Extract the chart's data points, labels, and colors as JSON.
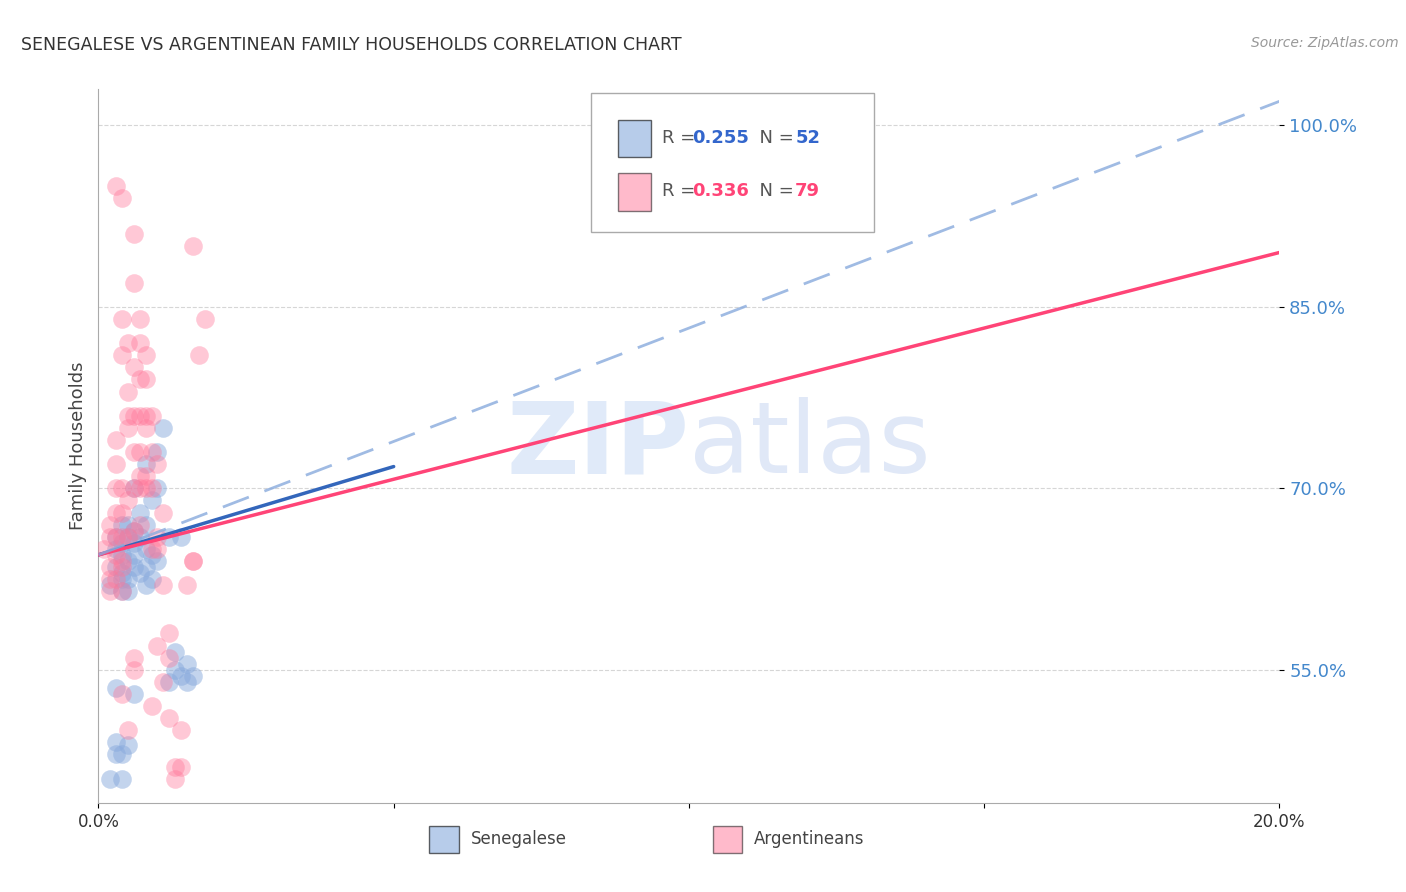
{
  "title": "SENEGALESE VS ARGENTINEAN FAMILY HOUSEHOLDS CORRELATION CHART",
  "source": "Source: ZipAtlas.com",
  "ylabel": "Family Households",
  "ytick_labels": [
    "55.0%",
    "70.0%",
    "85.0%",
    "100.0%"
  ],
  "ytick_values": [
    55.0,
    70.0,
    85.0,
    100.0
  ],
  "xlim": [
    0.0,
    20.0
  ],
  "ylim": [
    44.0,
    103.0
  ],
  "legend_blue_r": "0.255",
  "legend_blue_n": "52",
  "legend_pink_r": "0.336",
  "legend_pink_n": "79",
  "legend_label_blue": "Senegalese",
  "legend_label_pink": "Argentineans",
  "blue_color": "#88AADD",
  "pink_color": "#FF7799",
  "blue_scatter": [
    [
      0.2,
      62.0
    ],
    [
      0.3,
      63.5
    ],
    [
      0.3,
      65.0
    ],
    [
      0.3,
      66.0
    ],
    [
      0.4,
      63.0
    ],
    [
      0.4,
      64.5
    ],
    [
      0.4,
      65.5
    ],
    [
      0.4,
      62.5
    ],
    [
      0.4,
      61.5
    ],
    [
      0.5,
      64.0
    ],
    [
      0.5,
      66.0
    ],
    [
      0.5,
      67.0
    ],
    [
      0.5,
      62.5
    ],
    [
      0.5,
      61.5
    ],
    [
      0.6,
      63.5
    ],
    [
      0.6,
      64.5
    ],
    [
      0.6,
      65.5
    ],
    [
      0.6,
      66.5
    ],
    [
      0.6,
      70.0
    ],
    [
      0.7,
      63.0
    ],
    [
      0.7,
      66.0
    ],
    [
      0.7,
      68.0
    ],
    [
      0.8,
      62.0
    ],
    [
      0.8,
      63.5
    ],
    [
      0.8,
      65.0
    ],
    [
      0.8,
      67.0
    ],
    [
      0.8,
      72.0
    ],
    [
      0.9,
      62.5
    ],
    [
      0.9,
      64.5
    ],
    [
      0.9,
      69.0
    ],
    [
      1.0,
      70.0
    ],
    [
      1.0,
      64.0
    ],
    [
      1.0,
      73.0
    ],
    [
      1.1,
      75.0
    ],
    [
      1.2,
      66.0
    ],
    [
      1.2,
      54.0
    ],
    [
      1.3,
      55.0
    ],
    [
      1.3,
      56.5
    ],
    [
      1.4,
      66.0
    ],
    [
      1.4,
      54.5
    ],
    [
      1.5,
      55.5
    ],
    [
      1.5,
      54.0
    ],
    [
      1.6,
      54.5
    ],
    [
      0.3,
      48.0
    ],
    [
      0.3,
      49.0
    ],
    [
      0.4,
      48.0
    ],
    [
      0.5,
      48.8
    ],
    [
      0.6,
      53.0
    ],
    [
      0.2,
      46.0
    ],
    [
      0.4,
      46.0
    ],
    [
      0.3,
      53.5
    ],
    [
      0.4,
      67.0
    ]
  ],
  "pink_scatter": [
    [
      0.1,
      65.0
    ],
    [
      0.2,
      66.0
    ],
    [
      0.2,
      63.5
    ],
    [
      0.2,
      62.5
    ],
    [
      0.2,
      67.0
    ],
    [
      0.3,
      64.5
    ],
    [
      0.3,
      68.0
    ],
    [
      0.3,
      70.0
    ],
    [
      0.3,
      66.0
    ],
    [
      0.3,
      72.0
    ],
    [
      0.3,
      74.0
    ],
    [
      0.4,
      64.0
    ],
    [
      0.4,
      68.0
    ],
    [
      0.4,
      70.0
    ],
    [
      0.4,
      66.0
    ],
    [
      0.4,
      81.0
    ],
    [
      0.4,
      84.0
    ],
    [
      0.5,
      66.0
    ],
    [
      0.5,
      69.0
    ],
    [
      0.5,
      75.0
    ],
    [
      0.5,
      76.0
    ],
    [
      0.5,
      78.0
    ],
    [
      0.5,
      82.0
    ],
    [
      0.6,
      66.5
    ],
    [
      0.6,
      70.0
    ],
    [
      0.6,
      73.0
    ],
    [
      0.6,
      76.0
    ],
    [
      0.6,
      80.0
    ],
    [
      0.6,
      87.0
    ],
    [
      0.6,
      91.0
    ],
    [
      0.7,
      67.0
    ],
    [
      0.7,
      71.0
    ],
    [
      0.7,
      76.0
    ],
    [
      0.7,
      79.0
    ],
    [
      0.7,
      82.0
    ],
    [
      0.7,
      84.0
    ],
    [
      0.8,
      70.0
    ],
    [
      0.8,
      71.0
    ],
    [
      0.8,
      75.0
    ],
    [
      0.8,
      76.0
    ],
    [
      0.8,
      81.0
    ],
    [
      0.9,
      65.0
    ],
    [
      0.9,
      70.0
    ],
    [
      0.9,
      73.0
    ],
    [
      0.9,
      52.0
    ],
    [
      1.0,
      65.0
    ],
    [
      1.0,
      66.0
    ],
    [
      1.0,
      57.0
    ],
    [
      1.1,
      54.0
    ],
    [
      1.1,
      62.0
    ],
    [
      1.1,
      68.0
    ],
    [
      1.2,
      51.0
    ],
    [
      1.2,
      56.0
    ],
    [
      1.3,
      46.0
    ],
    [
      1.3,
      47.0
    ],
    [
      1.4,
      50.0
    ],
    [
      1.4,
      47.0
    ],
    [
      1.5,
      62.0
    ],
    [
      1.6,
      64.0
    ],
    [
      1.6,
      64.0
    ],
    [
      1.6,
      90.0
    ],
    [
      0.4,
      53.0
    ],
    [
      0.5,
      50.0
    ],
    [
      1.2,
      58.0
    ],
    [
      0.6,
      56.0
    ],
    [
      0.6,
      55.0
    ],
    [
      0.3,
      62.5
    ],
    [
      0.7,
      73.0
    ],
    [
      0.7,
      70.0
    ],
    [
      0.8,
      79.0
    ],
    [
      0.9,
      76.0
    ],
    [
      1.0,
      72.0
    ],
    [
      0.3,
      95.0
    ],
    [
      0.4,
      94.0
    ],
    [
      1.7,
      81.0
    ],
    [
      1.8,
      84.0
    ],
    [
      0.2,
      61.5
    ],
    [
      0.4,
      61.5
    ],
    [
      0.4,
      63.5
    ]
  ],
  "blue_line": [
    0.0,
    64.5,
    5.0,
    71.8
  ],
  "pink_line": [
    0.0,
    64.5,
    20.0,
    89.5
  ],
  "dashed_line": [
    0.0,
    64.5,
    20.0,
    102.0
  ],
  "watermark_zip": "ZIP",
  "watermark_atlas": "atlas",
  "background_color": "#ffffff",
  "grid_color": "#cccccc",
  "title_color": "#333333",
  "source_color": "#999999",
  "ytick_color": "#4488CC",
  "xtick_color": "#333333"
}
